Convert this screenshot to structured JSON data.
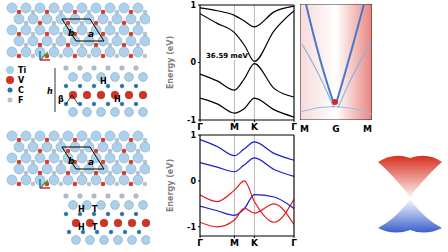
{
  "structures": [
    {
      "lattice_labels": [
        "b",
        "a"
      ],
      "side_labels": [
        "h",
        "β",
        "H",
        "H"
      ]
    },
    {
      "lattice_labels": [
        "b",
        "a"
      ],
      "side_labels": [
        "H",
        "T",
        "H",
        "T"
      ]
    }
  ],
  "legend": [
    {
      "label": "Ti",
      "color": "#a9cfe9"
    },
    {
      "label": "V",
      "color": "#d7301f"
    },
    {
      "label": "C",
      "color": "#1f6fb4"
    },
    {
      "label": "F",
      "color": "#b7bfcc"
    }
  ],
  "chart_data": [
    {
      "type": "line",
      "ylabel": "Energy (eV)",
      "annotations": [
        "36.59 meV"
      ],
      "x": [
        0,
        0.5,
        1,
        1.29,
        1.58,
        2.15,
        2.73
      ],
      "xlim": [
        0,
        2.73
      ],
      "xticks": [
        {
          "value": 0,
          "label": "Γ"
        },
        {
          "value": 1,
          "label": "M"
        },
        {
          "value": 1.58,
          "label": "K"
        },
        {
          "value": 2.73,
          "label": "Γ"
        }
      ],
      "ylim": [
        -1,
        1
      ],
      "yticks": [
        -1,
        0,
        1
      ],
      "grid": true,
      "series": [
        {
          "color": "#000000",
          "values": [
            0.95,
            0.9,
            0.82,
            0.72,
            0.62,
            0.88,
            0.98
          ]
        },
        {
          "color": "#000000",
          "values": [
            0.85,
            0.68,
            0.52,
            0.3,
            0.02,
            0.55,
            0.9
          ]
        },
        {
          "color": "#000000",
          "values": [
            -0.2,
            -0.32,
            -0.48,
            -0.28,
            -0.02,
            -0.45,
            -0.6
          ]
        },
        {
          "color": "#000000",
          "values": [
            -0.62,
            -0.72,
            -0.88,
            -0.8,
            -0.62,
            -0.82,
            -0.95
          ]
        }
      ]
    },
    {
      "type": "line",
      "ylabel": "Energy (eV)",
      "x": [
        0,
        0.5,
        1,
        1.29,
        1.58,
        2.15,
        2.73
      ],
      "xlim": [
        0,
        2.73
      ],
      "xticks": [
        {
          "value": 0,
          "label": "Γ"
        },
        {
          "value": 1,
          "label": "M"
        },
        {
          "value": 1.58,
          "label": "K"
        },
        {
          "value": 2.73,
          "label": "Γ"
        }
      ],
      "ylim": [
        -1.2,
        1
      ],
      "yticks": [
        -1,
        0,
        1
      ],
      "grid": true,
      "series": [
        {
          "color": "#1a1ad0",
          "values": [
            0.9,
            0.75,
            0.55,
            0.7,
            0.85,
            0.6,
            0.45
          ]
        },
        {
          "color": "#1a1ad0",
          "values": [
            0.4,
            0.3,
            0.2,
            0.35,
            0.5,
            0.25,
            0.1
          ]
        },
        {
          "color": "#e41a1c",
          "values": [
            -0.3,
            -0.45,
            -0.2,
            0.0,
            -0.45,
            -0.9,
            -0.4
          ]
        },
        {
          "color": "#1a1ad0",
          "values": [
            -0.55,
            -0.65,
            -0.75,
            -0.6,
            -0.3,
            -0.35,
            -0.6
          ]
        },
        {
          "color": "#e41a1c",
          "values": [
            -0.9,
            -1.0,
            -0.85,
            -0.6,
            -0.7,
            -0.5,
            -0.95
          ]
        }
      ]
    }
  ],
  "spectral": {
    "xlabels": [
      "M",
      "G",
      "M"
    ]
  }
}
